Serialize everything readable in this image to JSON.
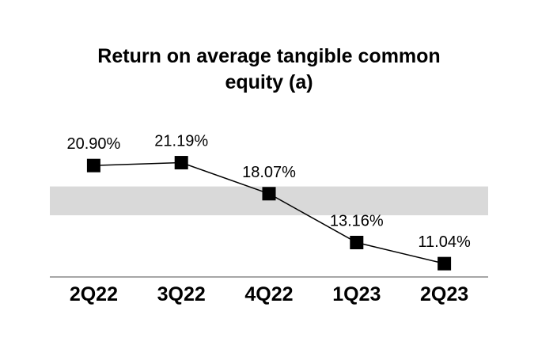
{
  "chart_data": {
    "type": "line",
    "title": "Return on average tangible common equity (a)",
    "categories": [
      "2Q22",
      "3Q22",
      "4Q22",
      "1Q23",
      "2Q23"
    ],
    "series": [
      {
        "name": "Return on average tangible common equity",
        "values": [
          20.9,
          21.19,
          18.07,
          13.16,
          11.04
        ],
        "labels": [
          "20.90%",
          "21.19%",
          "18.07%",
          "13.16%",
          "11.04%"
        ]
      }
    ],
    "ylim": [
      9.7,
      27.2
    ],
    "band": {
      "top": 18.8,
      "bottom": 15.9
    },
    "xlabel": "",
    "ylabel": "",
    "grid": false,
    "legend": "none",
    "colors": {
      "marker": "#000000",
      "line": "#000000",
      "band": "#d9d9d9",
      "axis": "#a6a6a6",
      "text": "#000000"
    }
  }
}
